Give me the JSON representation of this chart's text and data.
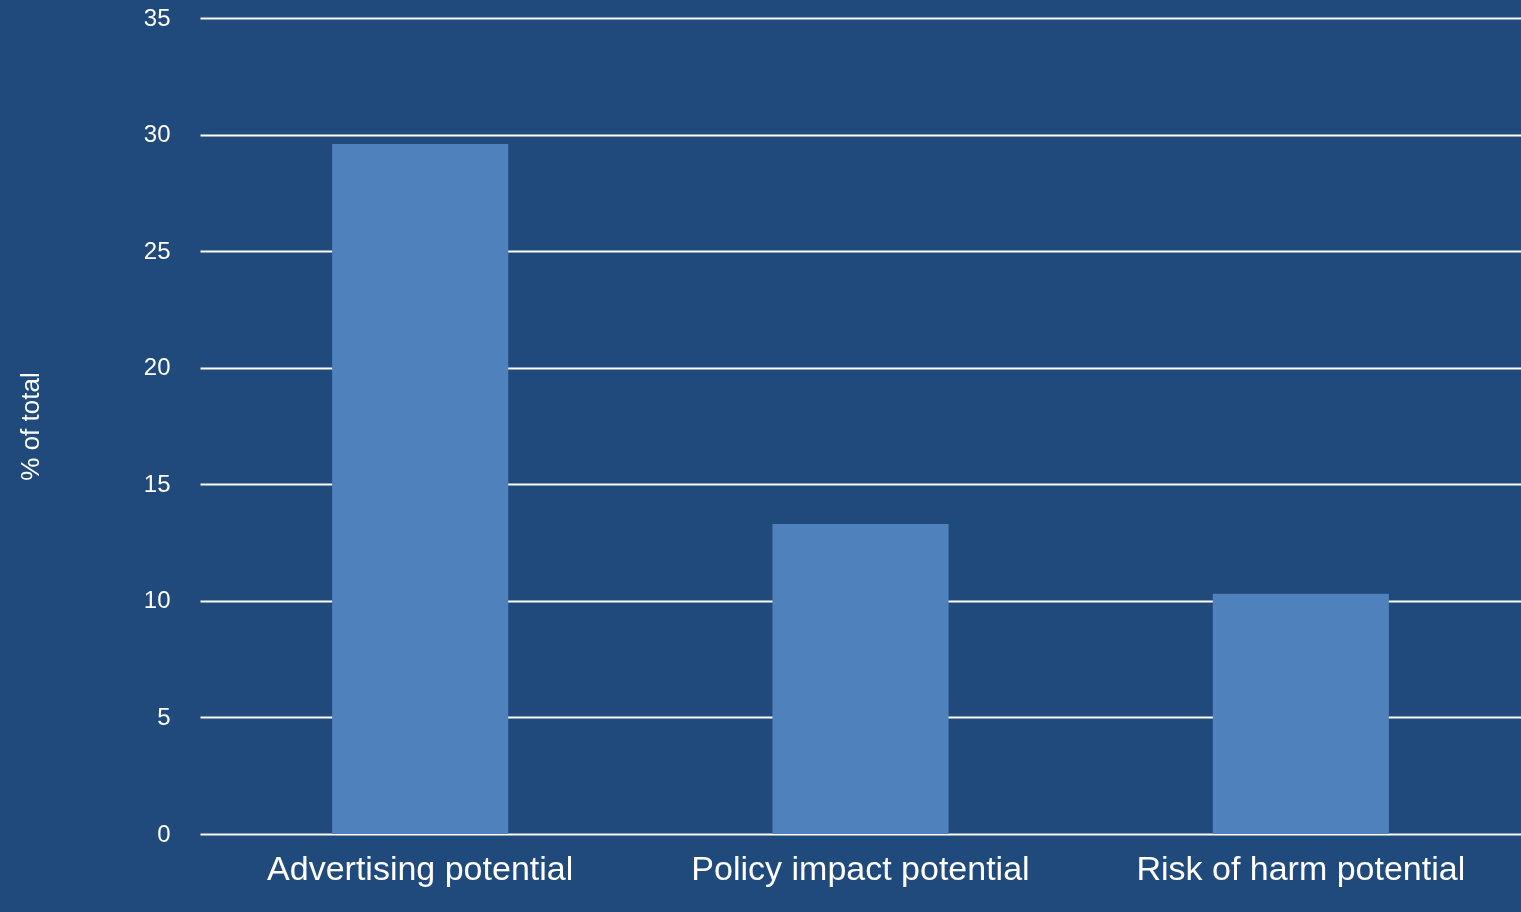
{
  "chart_data": {
    "type": "bar",
    "ylabel": "% of total",
    "categories": [
      "Advertising potential",
      "Policy impact potential",
      "Risk of harm potential"
    ],
    "values": [
      29.6,
      13.3,
      10.3
    ],
    "color": "#4f81bd",
    "ylim": [
      0,
      35
    ],
    "yticks": [
      0,
      5,
      10,
      15,
      20,
      25,
      30,
      35
    ],
    "grid": "y"
  }
}
